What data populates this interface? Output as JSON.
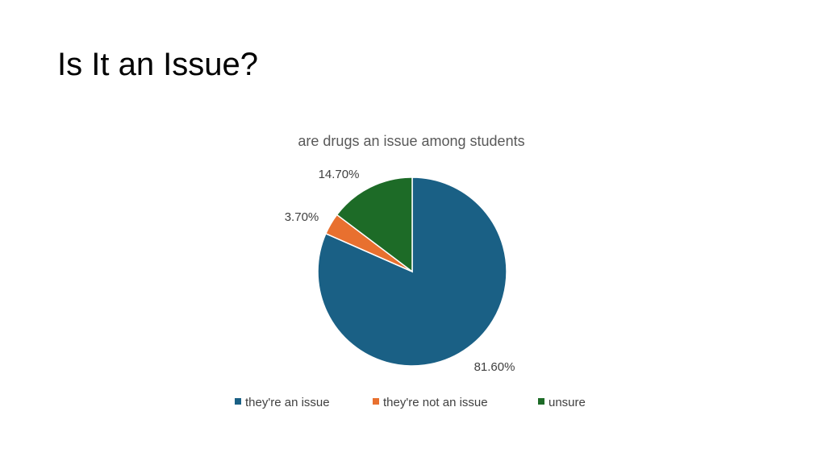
{
  "slide": {
    "title": "Is It an Issue?"
  },
  "chart_data": {
    "type": "pie",
    "title": "are drugs an issue among students",
    "categories": [
      "they're an issue",
      "they're not an issue",
      "unsure"
    ],
    "values": [
      81.6,
      3.7,
      14.7
    ],
    "data_labels": [
      "81.60%",
      "3.70%",
      "14.70%"
    ],
    "colors": [
      "#1a6085",
      "#e8702f",
      "#1d6b27"
    ],
    "legend_position": "bottom"
  }
}
